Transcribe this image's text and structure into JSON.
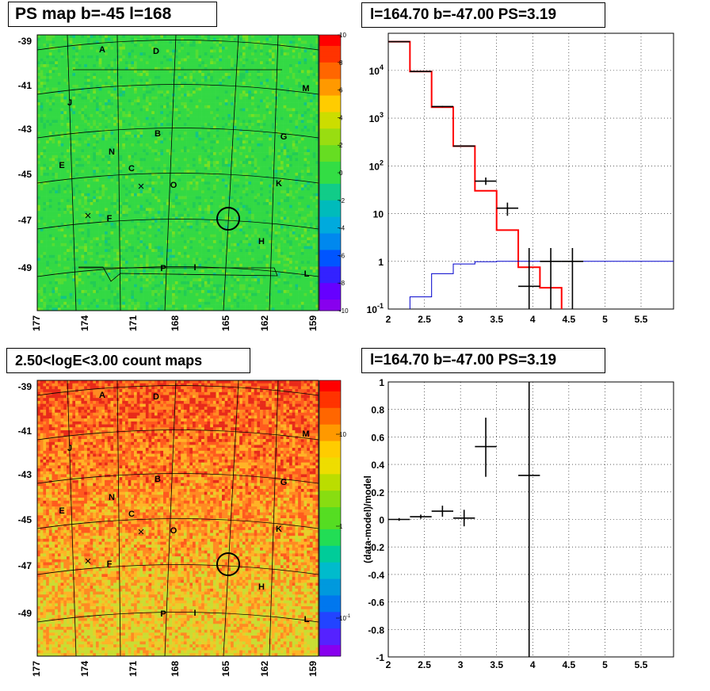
{
  "panels": {
    "tl": {
      "title": "PS map b=-45 l=168"
    },
    "tr": {
      "title": "l=164.70 b=-47.00 PS=3.19"
    },
    "bl": {
      "title": "2.50<logE<3.00 count maps"
    },
    "br": {
      "title": "l=164.70 b=-47.00 PS=3.19"
    }
  },
  "map_axes": {
    "lat_ticks": [
      "-39",
      "-41",
      "-43",
      "-45",
      "-47",
      "-49"
    ],
    "lon_ticks": [
      "177",
      "174",
      "171",
      "168",
      "165",
      "162",
      "159"
    ],
    "source_labels": [
      "A",
      "D",
      "M",
      "J",
      "B",
      "G",
      "N",
      "E",
      "C",
      "O",
      "K",
      "F",
      "H",
      "P",
      "I",
      "L"
    ]
  },
  "colorbars": {
    "ps": {
      "ticks": [
        "10",
        "8",
        "6",
        "4",
        "2",
        "0",
        "-2",
        "-4",
        "-6",
        "-8",
        "-10"
      ],
      "range": [
        -10,
        10
      ]
    },
    "counts": {
      "ticks": [
        "10",
        "1",
        "10-1"
      ],
      "scale": "log"
    }
  },
  "colors": {
    "ps_background": "#33dd44",
    "counts_background": "#ff7722",
    "data_line": "#000000",
    "model_line": "#ff0000",
    "ps_line": "#0000cc",
    "grid": "#000000"
  },
  "chart_data": [
    {
      "type": "heatmap",
      "title": "PS map b=-45 l=168",
      "xlabel": "",
      "ylabel": "",
      "x_ticks": [
        177,
        174,
        171,
        168,
        165,
        162,
        159
      ],
      "y_ticks": [
        -39,
        -41,
        -43,
        -45,
        -47,
        -49
      ],
      "z_range": [
        -10,
        10
      ],
      "note_circle": {
        "l": 164.7,
        "b": -47.0
      }
    },
    {
      "type": "line",
      "title": "l=164.70 b=-47.00 PS=3.19",
      "xlabel": "",
      "ylabel": "",
      "x_ticks": [
        "2",
        "2.5",
        "3",
        "3.5",
        "4",
        "4.5",
        "5",
        "5.5"
      ],
      "y_ticks": [
        "10^-1",
        "1",
        "10",
        "10^2",
        "10^3",
        "10^4"
      ],
      "xlim": [
        2,
        5.95
      ],
      "ylim": [
        0.1,
        60000
      ],
      "yscale": "log",
      "grid": true,
      "series": [
        {
          "kind": "model_step",
          "color": "#ff0000",
          "edges": [
            2.0,
            2.3,
            2.6,
            2.9,
            3.2,
            3.5,
            3.8,
            4.1,
            4.4
          ],
          "values": [
            40000,
            9500,
            1700,
            260,
            30,
            4.5,
            0.75,
            0.28,
            0.1
          ]
        },
        {
          "kind": "ps_step",
          "color": "#0000cc",
          "edges": [
            2.3,
            2.6,
            2.9,
            3.2,
            3.5,
            3.8,
            4.1,
            4.4,
            5.95
          ],
          "values": [
            0.18,
            0.55,
            0.88,
            0.98,
            1.0,
            1.0,
            1.0,
            1.0
          ]
        },
        {
          "kind": "data_points",
          "color": "#000000",
          "x": [
            2.15,
            2.45,
            2.75,
            3.05,
            3.35,
            3.65,
            3.95,
            4.25,
            4.55
          ],
          "xerr": 0.15,
          "y": [
            40000,
            9500,
            1750,
            260,
            48,
            13,
            0.3,
            1.0,
            1.0
          ],
          "ylo": [
            40000,
            9500,
            1700,
            255,
            40,
            9,
            0.1,
            0.1,
            0.1
          ],
          "yhi": [
            41000,
            9700,
            1800,
            266,
            57,
            17,
            1.9,
            1.9,
            1.9
          ]
        }
      ]
    },
    {
      "type": "heatmap",
      "title": "2.50<logE<3.00 count maps",
      "xlabel": "",
      "ylabel": "",
      "x_ticks": [
        177,
        174,
        171,
        168,
        165,
        162,
        159
      ],
      "y_ticks": [
        -39,
        -41,
        -43,
        -45,
        -47,
        -49
      ],
      "z_scale": "log",
      "note_circle": {
        "l": 164.7,
        "b": -47.0
      }
    },
    {
      "type": "scatter",
      "title": "l=164.70 b=-47.00 PS=3.19",
      "xlabel": "",
      "ylabel": "(data-model)/model",
      "x_ticks": [
        "2",
        "2.5",
        "3",
        "3.5",
        "4",
        "4.5",
        "5",
        "5.5"
      ],
      "y_ticks": [
        "-1",
        "-0.8",
        "-0.6",
        "-0.4",
        "-0.2",
        "0",
        "0.2",
        "0.4",
        "0.6",
        "0.8",
        "1"
      ],
      "xlim": [
        2,
        5.95
      ],
      "ylim": [
        -1,
        1
      ],
      "grid": true,
      "x": [
        2.15,
        2.45,
        2.75,
        3.05,
        3.35,
        3.95
      ],
      "xerr": 0.15,
      "y": [
        0.0,
        0.02,
        0.06,
        0.01,
        0.53,
        0.32
      ],
      "yerr_lo": [
        0.01,
        0.015,
        0.04,
        0.06,
        0.22,
        1.4
      ],
      "yerr_hi": [
        0.01,
        0.015,
        0.04,
        0.06,
        0.21,
        1.4
      ]
    }
  ]
}
